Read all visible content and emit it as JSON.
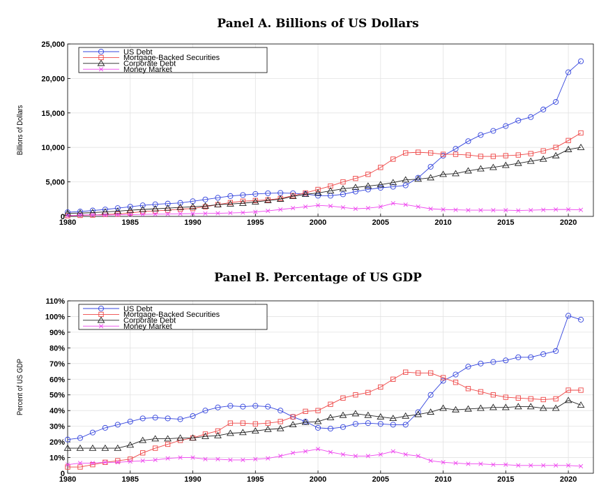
{
  "chart_data": [
    {
      "type": "line",
      "title": "Panel A. Billions of US Dollars",
      "xlabel": "",
      "ylabel": "Billions of Dollars",
      "xlim": [
        1980,
        2022
      ],
      "ylim": [
        0,
        25000
      ],
      "xticks": [
        1980,
        1985,
        1990,
        1995,
        2000,
        2005,
        2010,
        2015,
        2020
      ],
      "yticks": [
        0,
        5000,
        10000,
        15000,
        20000,
        25000
      ],
      "ytick_labels": [
        "0",
        "5,000",
        "10,000",
        "15,000",
        "20,000",
        "25,000"
      ],
      "grid": true,
      "legend_position": "top-left",
      "x": [
        1980,
        1981,
        1982,
        1983,
        1984,
        1985,
        1986,
        1987,
        1988,
        1989,
        1990,
        1991,
        1992,
        1993,
        1994,
        1995,
        1996,
        1997,
        1998,
        1999,
        2000,
        2001,
        2002,
        2003,
        2004,
        2005,
        2006,
        2007,
        2008,
        2009,
        2010,
        2011,
        2012,
        2013,
        2014,
        2015,
        2016,
        2017,
        2018,
        2019,
        2020,
        2021
      ],
      "series": [
        {
          "name": "US Debt",
          "color": "#3344dd",
          "marker": "circle",
          "values": [
            600,
            700,
            850,
            1000,
            1200,
            1400,
            1600,
            1750,
            1850,
            1950,
            2200,
            2450,
            2700,
            2950,
            3100,
            3250,
            3350,
            3400,
            3350,
            3250,
            3000,
            3000,
            3200,
            3600,
            3900,
            4150,
            4300,
            4500,
            5600,
            7200,
            8800,
            9800,
            10900,
            11800,
            12400,
            13100,
            13900,
            14400,
            15500,
            16600,
            20900,
            22500
          ]
        },
        {
          "name": "Mortgage-Backed Securities",
          "color": "#ee4444",
          "marker": "square",
          "values": [
            100,
            150,
            200,
            300,
            350,
            500,
            700,
            800,
            900,
            1050,
            1150,
            1400,
            1700,
            2000,
            2200,
            2300,
            2400,
            2600,
            3000,
            3400,
            3900,
            4400,
            5000,
            5500,
            6100,
            7100,
            8300,
            9200,
            9300,
            9200,
            9000,
            9000,
            8900,
            8700,
            8700,
            8800,
            8900,
            9100,
            9500,
            10000,
            11000,
            12100
          ]
        },
        {
          "name": "Corporate Debt",
          "color": "#222222",
          "marker": "triangle",
          "values": [
            450,
            480,
            550,
            650,
            750,
            900,
            1000,
            1100,
            1200,
            1300,
            1400,
            1500,
            1700,
            1800,
            1900,
            2100,
            2300,
            2500,
            2900,
            3200,
            3400,
            3700,
            4000,
            4200,
            4400,
            4600,
            4900,
            5300,
            5400,
            5600,
            6100,
            6200,
            6600,
            6900,
            7100,
            7400,
            7700,
            8000,
            8300,
            8800,
            9700,
            10000
          ]
        },
        {
          "name": "Money Market",
          "color": "#ee44ee",
          "marker": "x",
          "values": [
            80,
            200,
            220,
            180,
            230,
            250,
            300,
            320,
            340,
            380,
            400,
            420,
            450,
            500,
            550,
            650,
            800,
            1000,
            1200,
            1400,
            1600,
            1500,
            1300,
            1100,
            1200,
            1400,
            1900,
            1700,
            1400,
            1100,
            1000,
            950,
            900,
            900,
            900,
            900,
            850,
            900,
            950,
            1000,
            1000,
            950
          ]
        }
      ]
    },
    {
      "type": "line",
      "title": "Panel B. Percentage of US GDP",
      "xlabel": "",
      "ylabel": "Percent of US GDP",
      "xlim": [
        1980,
        2022
      ],
      "ylim": [
        0,
        110
      ],
      "xticks": [
        1980,
        1985,
        1990,
        1995,
        2000,
        2005,
        2010,
        2015,
        2020
      ],
      "yticks": [
        0,
        10,
        20,
        30,
        40,
        50,
        60,
        70,
        80,
        90,
        100,
        110
      ],
      "ytick_labels": [
        "0",
        "10%",
        "20%",
        "30%",
        "40%",
        "50%",
        "60%",
        "70%",
        "80%",
        "90%",
        "100%",
        "110%"
      ],
      "grid": true,
      "legend_position": "top-left",
      "x": [
        1980,
        1981,
        1982,
        1983,
        1984,
        1985,
        1986,
        1987,
        1988,
        1989,
        1990,
        1991,
        1992,
        1993,
        1994,
        1995,
        1996,
        1997,
        1998,
        1999,
        2000,
        2001,
        2002,
        2003,
        2004,
        2005,
        2006,
        2007,
        2008,
        2009,
        2010,
        2011,
        2012,
        2013,
        2014,
        2015,
        2016,
        2017,
        2018,
        2019,
        2020,
        2021
      ],
      "series": [
        {
          "name": "US Debt",
          "color": "#3344dd",
          "marker": "circle",
          "values": [
            21.5,
            22.5,
            26,
            29,
            31,
            33,
            35,
            35.5,
            35,
            34.5,
            36.5,
            40,
            42,
            43,
            42.5,
            43,
            42.5,
            40,
            36,
            33,
            29,
            28.5,
            29.5,
            31.5,
            32,
            31.5,
            31,
            31,
            39,
            50,
            59,
            63,
            68,
            70,
            71,
            72,
            74,
            74,
            76,
            78,
            100.5,
            98
          ]
        },
        {
          "name": "Mortgage-Backed Securities",
          "color": "#ee4444",
          "marker": "square",
          "values": [
            4,
            4,
            5.5,
            7,
            8,
            9,
            13,
            16,
            18.5,
            21,
            22.5,
            25,
            27,
            32,
            32,
            31.5,
            32,
            33,
            36,
            39.5,
            40,
            44,
            48,
            50,
            51.5,
            55,
            60,
            64.5,
            64,
            64,
            61,
            58,
            54,
            52,
            50,
            48.5,
            48,
            47.5,
            47,
            47.5,
            53,
            53
          ]
        },
        {
          "name": "Corporate Debt",
          "color": "#222222",
          "marker": "triangle",
          "values": [
            16,
            16,
            16,
            16,
            16,
            18,
            21,
            22,
            22,
            22.5,
            22.5,
            23.5,
            24,
            25.5,
            26,
            27,
            28,
            28.5,
            31,
            32.5,
            33,
            35.5,
            37,
            38,
            37,
            36,
            35,
            36.5,
            37.5,
            39,
            41.5,
            40.5,
            41,
            41.5,
            42,
            42,
            42.5,
            42.5,
            41.5,
            41.5,
            46.5,
            43.5
          ]
        },
        {
          "name": "Money Market",
          "color": "#ee44ee",
          "marker": "x",
          "values": [
            5.5,
            6.5,
            6.5,
            7,
            7,
            7.5,
            8,
            8.5,
            9.5,
            10,
            10,
            9,
            9,
            8.5,
            8.5,
            9,
            9.5,
            11,
            13,
            14,
            15.5,
            13.5,
            12,
            11,
            11,
            12,
            14,
            12,
            11,
            8,
            7,
            6.5,
            6,
            6,
            5.5,
            5.5,
            5,
            5,
            5,
            5,
            5,
            4.5
          ]
        }
      ]
    }
  ]
}
